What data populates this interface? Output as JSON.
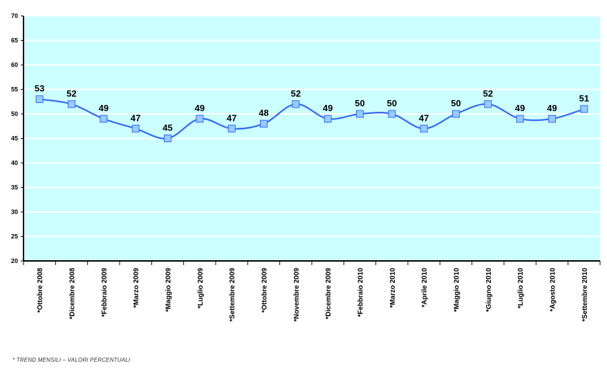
{
  "chart_data": {
    "type": "line",
    "categories": [
      "*Ottobre 2008",
      "*Dicembre 2008",
      "*Febbraio 2009",
      "*Marzo 2009",
      "*Maggio 2009",
      "*Luglio 2009",
      "*Settembre 2009",
      "*Ottobre 2009",
      "*Novembre 2009",
      "*Dicembre 2009",
      "*Febbraio 2010",
      "*Marzo 2010",
      "*Aprile 2010",
      "*Maggio 2010",
      "*Giugno 2010",
      "*Luglio 2010",
      "*Agosto 2010",
      "*Settembre 2010"
    ],
    "series": [
      {
        "values": [
          53,
          52,
          49,
          47,
          45,
          49,
          47,
          48,
          52,
          49,
          50,
          50,
          47,
          50,
          52,
          49,
          49,
          51
        ]
      }
    ],
    "ylim": [
      20,
      70
    ],
    "yticks": [
      20,
      25,
      30,
      35,
      40,
      45,
      50,
      55,
      60,
      65,
      70
    ],
    "grid": true,
    "data_labels": true,
    "smooth": true,
    "colors": {
      "plot_bg": "#ccffff",
      "grid": "#ffffff",
      "line": "#3366ff",
      "marker_fill": "#99ccff",
      "marker_stroke": "#3366ff"
    }
  },
  "footnote": "* TREND MENSILI – VALORI PERCENTUALI"
}
